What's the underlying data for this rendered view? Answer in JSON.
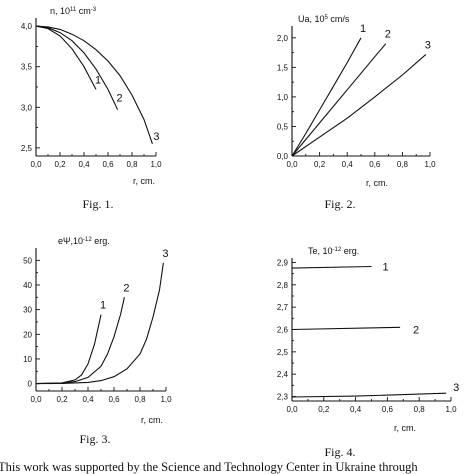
{
  "charts": [
    {
      "type": "line",
      "ylabel": "n, 10<sup>11</sup> cm<sup>-3</sup>",
      "ylabel_text": "n, 10",
      "ylabel_exp": "11",
      "ylabel_unit": " cm",
      "ylabel_unit_exp": "-3",
      "xlabel": "r, cm.",
      "caption": "Fig. 1.",
      "xlim": [
        0.0,
        1.0
      ],
      "ylim": [
        2.4,
        4.1
      ],
      "xticks": [
        "0,0",
        "0,2",
        "0,4",
        "0,6",
        "0,8",
        "1,0"
      ],
      "yticks": [
        "2,5",
        "3,0",
        "3,5",
        "4,0"
      ],
      "series": [
        {
          "label": "1",
          "x": [
            0.0,
            0.1,
            0.2,
            0.3,
            0.4,
            0.5
          ],
          "y": [
            4.0,
            3.97,
            3.88,
            3.72,
            3.5,
            3.22
          ]
        },
        {
          "label": "2",
          "x": [
            0.0,
            0.1,
            0.2,
            0.3,
            0.4,
            0.5,
            0.6,
            0.68
          ],
          "y": [
            4.0,
            3.98,
            3.92,
            3.82,
            3.67,
            3.47,
            3.22,
            2.97
          ]
        },
        {
          "label": "3",
          "x": [
            0.0,
            0.1,
            0.2,
            0.3,
            0.4,
            0.5,
            0.6,
            0.7,
            0.8,
            0.9,
            0.97
          ],
          "y": [
            4.0,
            3.99,
            3.96,
            3.9,
            3.82,
            3.71,
            3.57,
            3.39,
            3.15,
            2.85,
            2.55
          ]
        }
      ]
    },
    {
      "type": "line",
      "ylabel_text": "Ua, 10",
      "ylabel_exp": "5",
      "ylabel_unit": " cm/s",
      "ylabel_unit_exp": "",
      "xlabel": "r, cm.",
      "caption": "Fig. 2.",
      "xlim": [
        0.0,
        1.0
      ],
      "ylim": [
        0.0,
        2.2
      ],
      "xticks": [
        "0,0",
        "0,2",
        "0,4",
        "0,6",
        "0,8",
        "1,0"
      ],
      "yticks": [
        "0,0",
        "0,5",
        "1,0",
        "1,5",
        "2,0"
      ],
      "series": [
        {
          "label": "1",
          "x": [
            0.0,
            0.1,
            0.2,
            0.3,
            0.4,
            0.5
          ],
          "y": [
            0.0,
            0.38,
            0.78,
            1.18,
            1.58,
            2.0
          ]
        },
        {
          "label": "2",
          "x": [
            0.0,
            0.1,
            0.2,
            0.3,
            0.4,
            0.5,
            0.6,
            0.68
          ],
          "y": [
            0.0,
            0.28,
            0.56,
            0.84,
            1.12,
            1.4,
            1.68,
            1.9
          ]
        },
        {
          "label": "3",
          "x": [
            0.0,
            0.2,
            0.4,
            0.6,
            0.8,
            0.97
          ],
          "y": [
            0.0,
            0.32,
            0.64,
            1.0,
            1.37,
            1.72
          ]
        }
      ]
    },
    {
      "type": "line",
      "ylabel_text": "eΨ,10",
      "ylabel_exp": "-12",
      "ylabel_unit": " erg.",
      "ylabel_unit_exp": "",
      "xlabel": "r, cm.",
      "caption": "Fig. 3.",
      "xlim": [
        0.0,
        1.0
      ],
      "ylim": [
        -3,
        55
      ],
      "xticks": [
        "0,0",
        "0,2",
        "0,4",
        "0,6",
        "0,8",
        "1,0"
      ],
      "yticks": [
        "0",
        "10",
        "20",
        "30",
        "40",
        "50"
      ],
      "series": [
        {
          "label": "1",
          "x": [
            0.0,
            0.2,
            0.3,
            0.35,
            0.4,
            0.45,
            0.5
          ],
          "y": [
            0,
            0.3,
            1.5,
            3.5,
            8,
            16,
            28
          ]
        },
        {
          "label": "2",
          "x": [
            0.0,
            0.2,
            0.3,
            0.4,
            0.5,
            0.55,
            0.6,
            0.65,
            0.68
          ],
          "y": [
            0,
            0.2,
            0.8,
            2.5,
            7,
            12,
            19,
            28,
            35
          ]
        },
        {
          "label": "3",
          "x": [
            0.0,
            0.2,
            0.4,
            0.5,
            0.6,
            0.7,
            0.8,
            0.85,
            0.9,
            0.95,
            0.98
          ],
          "y": [
            0,
            0.1,
            0.5,
            1.2,
            2.8,
            6,
            12,
            18,
            27,
            38,
            49
          ]
        }
      ]
    },
    {
      "type": "line",
      "ylabel_text": "Te, 10",
      "ylabel_exp": "-12",
      "ylabel_unit": " erg.",
      "ylabel_unit_exp": "",
      "xlabel": "r, cm.",
      "caption": "Fig. 4.",
      "xlim": [
        0.0,
        1.0
      ],
      "ylim": [
        2.28,
        2.92
      ],
      "xticks": [
        "0,0",
        "0,2",
        "0,4",
        "0,6",
        "0,8",
        "1,0"
      ],
      "yticks": [
        "2,3",
        "2,4",
        "2,5",
        "2,6",
        "2,7",
        "2,8",
        "2,9"
      ],
      "series": [
        {
          "label": "1",
          "x": [
            0.0,
            0.5
          ],
          "y": [
            2.875,
            2.882
          ]
        },
        {
          "label": "2",
          "x": [
            0.0,
            0.68
          ],
          "y": [
            2.6,
            2.61
          ]
        },
        {
          "label": "3",
          "x": [
            0.0,
            0.4,
            0.97
          ],
          "y": [
            2.298,
            2.302,
            2.315
          ]
        }
      ]
    }
  ],
  "footer_text": "This work was supported by the Science and Technology Center in Ukraine through"
}
